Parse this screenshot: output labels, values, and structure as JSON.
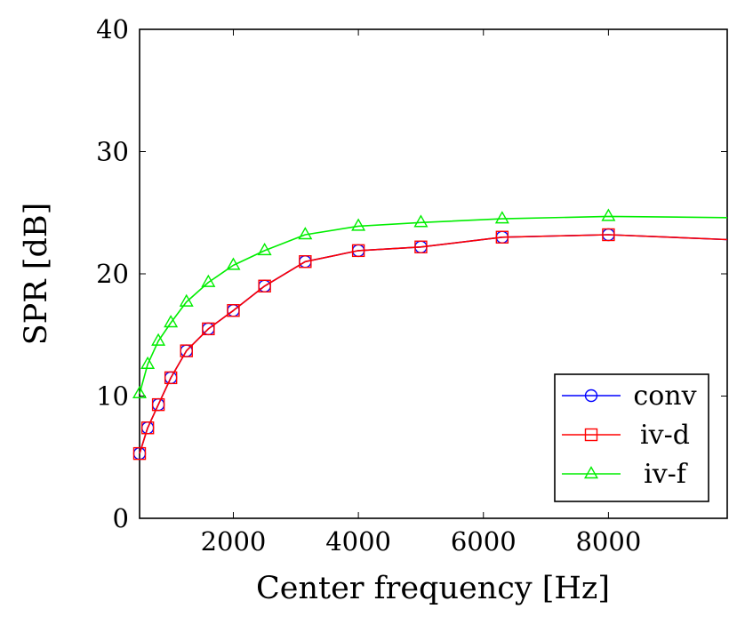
{
  "chart_data": {
    "type": "line",
    "xlabel": "Center frequency [Hz]",
    "ylabel": "SPR [dB]",
    "xlim": [
      500,
      9900
    ],
    "ylim": [
      0,
      40
    ],
    "x_ticks": [
      2000,
      4000,
      6000,
      8000
    ],
    "y_ticks": [
      0,
      10,
      20,
      30,
      40
    ],
    "x_tick_labels": [
      "2000",
      "4000",
      "6000",
      "8000"
    ],
    "y_tick_labels": [
      "0",
      "10",
      "20",
      "30",
      "40"
    ],
    "grid": false,
    "legend_position": "bottom-right",
    "series": [
      {
        "name": "conv",
        "color": "#0000ff",
        "marker": "circle",
        "x": [
          500,
          630,
          800,
          1000,
          1250,
          1600,
          2000,
          2500,
          3150,
          4000,
          5000,
          6300,
          8000,
          9900
        ],
        "y": [
          5.3,
          7.4,
          9.3,
          11.5,
          13.7,
          15.5,
          17.0,
          19.0,
          21.0,
          21.9,
          22.2,
          23.0,
          23.2,
          22.8
        ],
        "marked_points": 13
      },
      {
        "name": "iv-d",
        "color": "#ff0000",
        "marker": "square",
        "x": [
          500,
          630,
          800,
          1000,
          1250,
          1600,
          2000,
          2500,
          3150,
          4000,
          5000,
          6300,
          8000,
          9900
        ],
        "y": [
          5.3,
          7.4,
          9.3,
          11.5,
          13.7,
          15.5,
          17.0,
          19.0,
          21.0,
          21.9,
          22.2,
          23.0,
          23.2,
          22.8
        ],
        "marked_points": 13
      },
      {
        "name": "iv-f",
        "color": "#00ee00",
        "marker": "triangle",
        "x": [
          500,
          630,
          800,
          1000,
          1250,
          1600,
          2000,
          2500,
          3150,
          4000,
          5000,
          6300,
          8000,
          9900
        ],
        "y": [
          10.2,
          12.6,
          14.5,
          16.0,
          17.7,
          19.3,
          20.7,
          21.9,
          23.2,
          23.9,
          24.2,
          24.5,
          24.7,
          24.6
        ],
        "marked_points": 13
      }
    ]
  }
}
